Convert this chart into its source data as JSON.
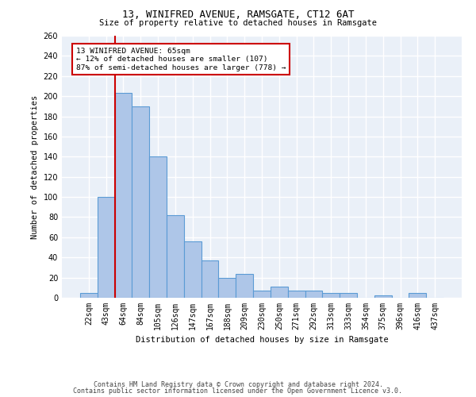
{
  "title": "13, WINIFRED AVENUE, RAMSGATE, CT12 6AT",
  "subtitle": "Size of property relative to detached houses in Ramsgate",
  "xlabel": "Distribution of detached houses by size in Ramsgate",
  "ylabel": "Number of detached properties",
  "categories": [
    "22sqm",
    "43sqm",
    "64sqm",
    "84sqm",
    "105sqm",
    "126sqm",
    "147sqm",
    "167sqm",
    "188sqm",
    "209sqm",
    "230sqm",
    "250sqm",
    "271sqm",
    "292sqm",
    "313sqm",
    "333sqm",
    "354sqm",
    "375sqm",
    "396sqm",
    "416sqm",
    "437sqm"
  ],
  "bar_values": [
    5,
    100,
    203,
    190,
    140,
    82,
    56,
    37,
    20,
    24,
    7,
    11,
    7,
    7,
    5,
    5,
    0,
    2,
    0,
    5,
    0
  ],
  "bar_color": "#aec6e8",
  "bar_edge_color": "#5b9bd5",
  "vline_color": "#cc0000",
  "annotation_text_line1": "13 WINIFRED AVENUE: 65sqm",
  "annotation_text_line2": "← 12% of detached houses are smaller (107)",
  "annotation_text_line3": "87% of semi-detached houses are larger (778) →",
  "annotation_box_color": "#cc0000",
  "ylim": [
    0,
    260
  ],
  "yticks": [
    0,
    20,
    40,
    60,
    80,
    100,
    120,
    140,
    160,
    180,
    200,
    220,
    240,
    260
  ],
  "bg_color": "#eaf0f8",
  "grid_color": "#ffffff",
  "footer1": "Contains HM Land Registry data © Crown copyright and database right 2024.",
  "footer2": "Contains public sector information licensed under the Open Government Licence v3.0."
}
